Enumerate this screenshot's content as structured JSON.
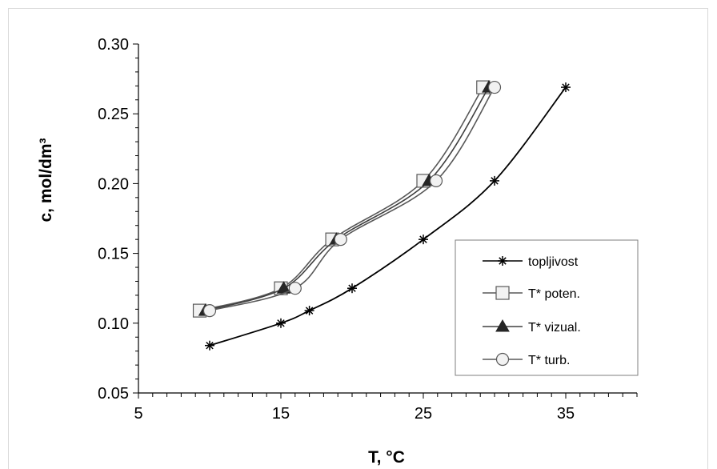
{
  "chart_data": {
    "type": "line",
    "title": "",
    "xlabel": "T, °C",
    "ylabel": "c, mol/dm³",
    "xlim": [
      5,
      40
    ],
    "ylim": [
      0.05,
      0.3
    ],
    "x_ticks": [
      "5",
      "15",
      "25",
      "35"
    ],
    "y_ticks": [
      "0.05",
      "0.10",
      "0.15",
      "0.20",
      "0.25",
      "0.30"
    ],
    "grid": false,
    "legend_position": "right",
    "series": [
      {
        "name": "topljivost",
        "marker": "star",
        "color": "#000000",
        "x": [
          10,
          15,
          17,
          20,
          25,
          30,
          35
        ],
        "y": [
          0.084,
          0.1,
          0.109,
          0.125,
          0.16,
          0.202,
          0.269
        ]
      },
      {
        "name": "T* poten.",
        "marker": "square",
        "color": "#595959",
        "x": [
          9.3,
          15.0,
          18.6,
          25.0,
          29.2
        ],
        "y": [
          0.109,
          0.125,
          0.16,
          0.202,
          0.269
        ]
      },
      {
        "name": "T* vizual.",
        "marker": "triangle",
        "color": "#404040",
        "x": [
          9.7,
          15.2,
          18.9,
          25.4,
          29.6
        ],
        "y": [
          0.109,
          0.125,
          0.16,
          0.202,
          0.269
        ]
      },
      {
        "name": "T* turb.",
        "marker": "circle",
        "color": "#595959",
        "x": [
          10.0,
          16.0,
          19.2,
          25.9,
          30.0
        ],
        "y": [
          0.109,
          0.125,
          0.16,
          0.202,
          0.269
        ]
      }
    ]
  }
}
